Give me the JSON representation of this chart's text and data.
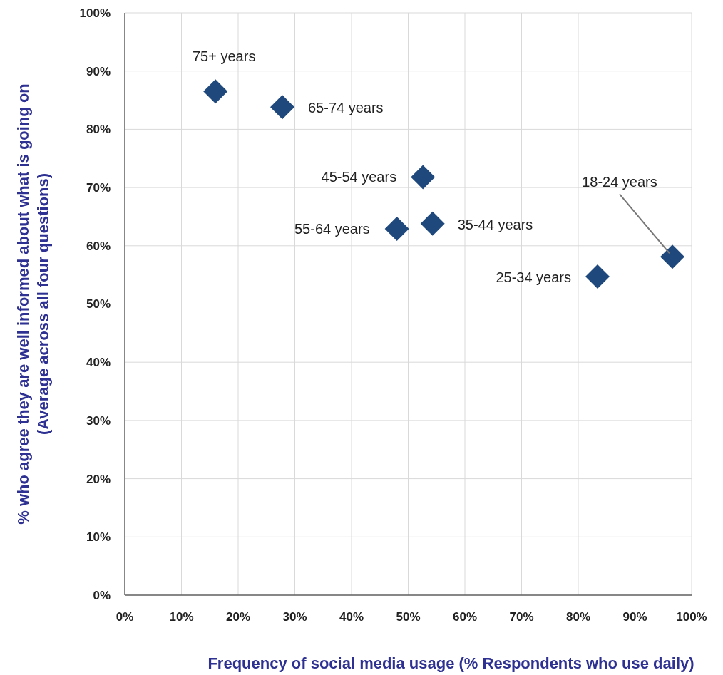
{
  "chart_data": {
    "type": "scatter",
    "xlabel": "Frequency of social media usage (% Respondents who use daily)",
    "ylabel": "% who agree they are well informed about what is going on\n(Average across all four questions)",
    "x": [
      16,
      27.8,
      52.6,
      48,
      54.3,
      83.4,
      96.6
    ],
    "series": [
      {
        "color": "#1f497d",
        "values": [
          86.5,
          83.8,
          71.8,
          62.9,
          63.8,
          54.7,
          58.1
        ]
      }
    ],
    "annotations": [
      {
        "text": "75+ years",
        "x": 16,
        "y": 86.5
      },
      {
        "text": "65-74 years",
        "x": 27.8,
        "y": 83.8
      },
      {
        "text": "45-54 years",
        "x": 52.6,
        "y": 71.8
      },
      {
        "text": "55-64 years",
        "x": 48,
        "y": 62.9
      },
      {
        "text": "35-44 years",
        "x": 54.3,
        "y": 63.8
      },
      {
        "text": "25-34 years",
        "x": 83.4,
        "y": 54.7
      },
      {
        "text": "18-24 years",
        "x": 96.6,
        "y": 58.1
      }
    ],
    "xlim": [
      0,
      100
    ],
    "ylim": [
      0,
      100
    ],
    "xticks": [
      {
        "value": 0,
        "label": "0%"
      },
      {
        "value": 10,
        "label": "10%"
      },
      {
        "value": 20,
        "label": "20%"
      },
      {
        "value": 30,
        "label": "30%"
      },
      {
        "value": 40,
        "label": "40%"
      },
      {
        "value": 50,
        "label": "50%"
      },
      {
        "value": 60,
        "label": "60%"
      },
      {
        "value": 70,
        "label": "70%"
      },
      {
        "value": 80,
        "label": "80%"
      },
      {
        "value": 90,
        "label": "90%"
      },
      {
        "value": 100,
        "label": "100%"
      }
    ],
    "yticks": [
      {
        "value": 0,
        "label": "0%"
      },
      {
        "value": 10,
        "label": "10%"
      },
      {
        "value": 20,
        "label": "20%"
      },
      {
        "value": 30,
        "label": "30%"
      },
      {
        "value": 40,
        "label": "40%"
      },
      {
        "value": 50,
        "label": "50%"
      },
      {
        "value": 60,
        "label": "60%"
      },
      {
        "value": 70,
        "label": "70%"
      },
      {
        "value": 80,
        "label": "80%"
      },
      {
        "value": 90,
        "label": "90%"
      },
      {
        "value": 100,
        "label": "100%"
      }
    ],
    "grid": true,
    "marker": "diamond"
  }
}
